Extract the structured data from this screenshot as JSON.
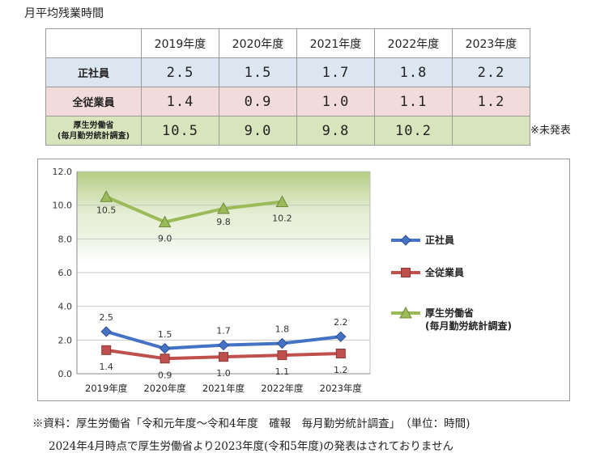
{
  "title": "月平均残業時間",
  "table": {
    "headers": [
      "2019年度",
      "2020年度",
      "2021年度",
      "2022年度",
      "2023年度"
    ],
    "rows": [
      {
        "label": "正社員",
        "values": [
          "2.5",
          "1.5",
          "1.7",
          "1.8",
          "2.2"
        ]
      },
      {
        "label": "全従業員",
        "values": [
          "1.4",
          "0.9",
          "1.0",
          "1.1",
          "1.2"
        ]
      },
      {
        "label": "厚生労働省",
        "sublabel": "(毎月勤労統計調査)",
        "values": [
          "10.5",
          "9.0",
          "9.8",
          "10.2",
          ""
        ]
      }
    ]
  },
  "note": "※未発表",
  "chart_data": {
    "type": "line",
    "categories": [
      "2019年度",
      "2020年度",
      "2021年度",
      "2022年度",
      "2023年度"
    ],
    "yticks": [
      "0.0",
      "2.0",
      "4.0",
      "6.0",
      "8.0",
      "10.0",
      "12.0"
    ],
    "ylim": [
      0,
      12
    ],
    "legend_position": "right",
    "series": [
      {
        "name": "正社員",
        "color": "#4472c4",
        "marker": "diamond",
        "values": [
          2.5,
          1.5,
          1.7,
          1.8,
          2.2
        ],
        "labels": [
          "2.5",
          "1.5",
          "1.7",
          "1.8",
          "2.2"
        ],
        "label_position": "above"
      },
      {
        "name": "全従業員",
        "color": "#c0504d",
        "marker": "square",
        "values": [
          1.4,
          0.9,
          1.0,
          1.1,
          1.2
        ],
        "labels": [
          "1.4",
          "0.9",
          "1.0",
          "1.1",
          "1.2"
        ],
        "label_position": "below"
      },
      {
        "name": "厚生労働省",
        "name_line2": "(毎月勤労統計調査)",
        "color": "#9bbb59",
        "marker": "triangle",
        "values": [
          10.5,
          9.0,
          9.8,
          10.2,
          null
        ],
        "labels": [
          "10.5",
          "9.0",
          "9.8",
          "10.2",
          ""
        ],
        "label_position": "mixed"
      }
    ]
  },
  "footnotes": {
    "line1": "※資料：厚生労働省「令和元年度～令和4年度　確報　毎月勤労統計調査」　（単位：時間)",
    "line2": "2024年4月時点で厚生労働省より2023年度(令和5年度)の発表はされておりません"
  }
}
